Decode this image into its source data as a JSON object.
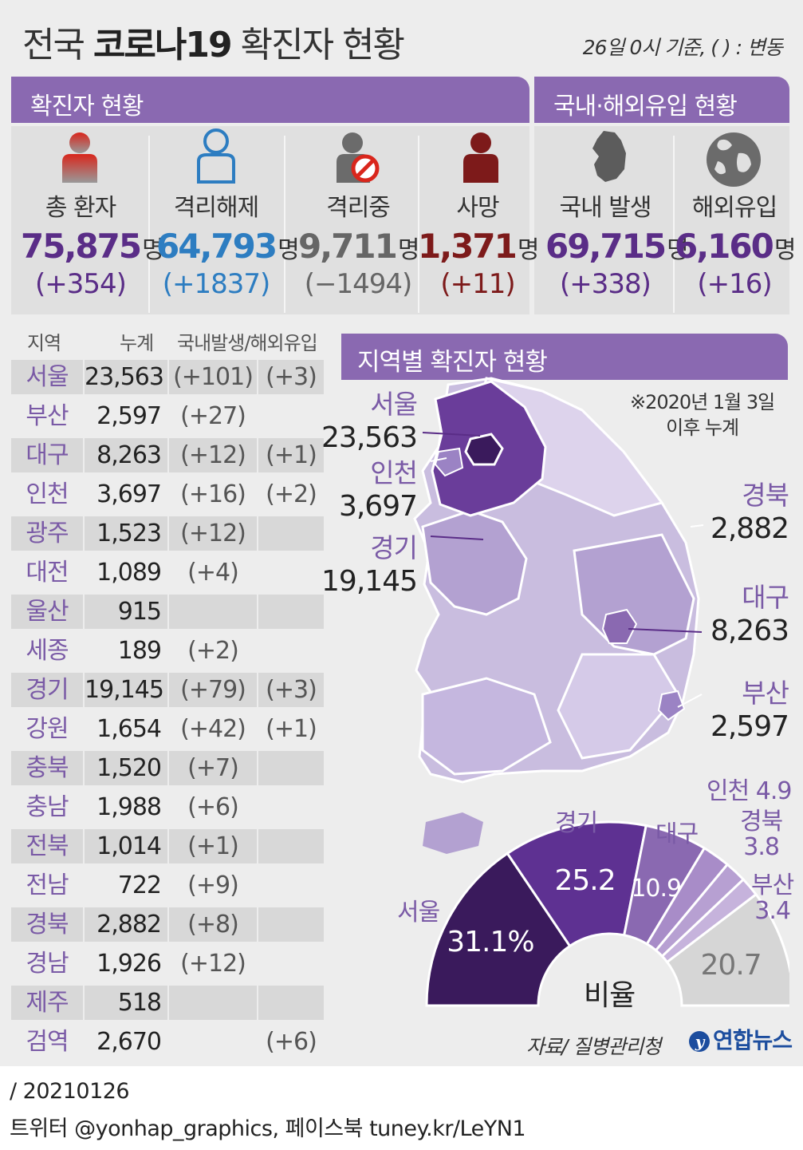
{
  "header": {
    "title_prefix": "전국 ",
    "title_bold": "코로나19",
    "title_suffix": " 확진자 현황",
    "subtitle": "26일 0시 기준, ( ) : 변동"
  },
  "status_section": {
    "title": "확진자 현황",
    "items": [
      {
        "label": "총 환자",
        "value": "75,875",
        "unit": "명",
        "change": "(+354)",
        "icon": "person-red-icon",
        "color": "#5a2d87"
      },
      {
        "label": "격리해제",
        "value": "64,793",
        "unit": "명",
        "change": "(+1837)",
        "icon": "person-outline-icon",
        "color": "#2d7dc1"
      },
      {
        "label": "격리중",
        "value": "9,711",
        "unit": "명",
        "change": "(−1494)",
        "icon": "person-blocked-icon",
        "color": "#666666"
      },
      {
        "label": "사망",
        "value": "1,371",
        "unit": "명",
        "change": "(+11)",
        "icon": "person-darkred-icon",
        "color": "#7d1a1a"
      }
    ]
  },
  "origin_section": {
    "title": "국내·해외유입 현황",
    "items": [
      {
        "label": "국내 발생",
        "value": "69,715",
        "unit": "명",
        "change": "(+338)",
        "icon": "korea-map-icon",
        "color": "#5a2d87"
      },
      {
        "label": "해외유입",
        "value": "6,160",
        "unit": "명",
        "change": "(+16)",
        "icon": "globe-icon",
        "color": "#5a2d87"
      }
    ]
  },
  "table": {
    "headers": [
      "지역",
      "누계",
      "국내발생/해외유입"
    ],
    "rows": [
      {
        "region": "서울",
        "total": "23,563",
        "domestic": "(+101)",
        "imported": "(+3)"
      },
      {
        "region": "부산",
        "total": "2,597",
        "domestic": "(+27)",
        "imported": ""
      },
      {
        "region": "대구",
        "total": "8,263",
        "domestic": "(+12)",
        "imported": "(+1)"
      },
      {
        "region": "인천",
        "total": "3,697",
        "domestic": "(+16)",
        "imported": "(+2)"
      },
      {
        "region": "광주",
        "total": "1,523",
        "domestic": "(+12)",
        "imported": ""
      },
      {
        "region": "대전",
        "total": "1,089",
        "domestic": "(+4)",
        "imported": ""
      },
      {
        "region": "울산",
        "total": "915",
        "domestic": "",
        "imported": ""
      },
      {
        "region": "세종",
        "total": "189",
        "domestic": "(+2)",
        "imported": ""
      },
      {
        "region": "경기",
        "total": "19,145",
        "domestic": "(+79)",
        "imported": "(+3)"
      },
      {
        "region": "강원",
        "total": "1,654",
        "domestic": "(+42)",
        "imported": "(+1)"
      },
      {
        "region": "충북",
        "total": "1,520",
        "domestic": "(+7)",
        "imported": ""
      },
      {
        "region": "충남",
        "total": "1,988",
        "domestic": "(+6)",
        "imported": ""
      },
      {
        "region": "전북",
        "total": "1,014",
        "domestic": "(+1)",
        "imported": ""
      },
      {
        "region": "전남",
        "total": "722",
        "domestic": "(+9)",
        "imported": ""
      },
      {
        "region": "경북",
        "total": "2,882",
        "domestic": "(+8)",
        "imported": ""
      },
      {
        "region": "경남",
        "total": "1,926",
        "domestic": "(+12)",
        "imported": ""
      },
      {
        "region": "제주",
        "total": "518",
        "domestic": "",
        "imported": ""
      },
      {
        "region": "검역",
        "total": "2,670",
        "domestic": "",
        "imported": "(+6)"
      }
    ]
  },
  "map_section": {
    "title": "지역별 확진자 현황",
    "note_line1": "※2020년 1월 3일",
    "note_line2": "이후 누계",
    "labels": [
      {
        "name": "서울",
        "value": "23,563"
      },
      {
        "name": "인천",
        "value": "3,697"
      },
      {
        "name": "경기",
        "value": "19,145"
      },
      {
        "name": "경북",
        "value": "2,882"
      },
      {
        "name": "대구",
        "value": "8,263"
      },
      {
        "name": "부산",
        "value": "2,597"
      }
    ]
  },
  "chart_data": {
    "type": "pie",
    "shape": "half-donut",
    "center_label": "비율",
    "unit": "%",
    "slices": [
      {
        "label": "서울",
        "value": 31.1,
        "display": "31.1",
        "color": "#3a1a5c"
      },
      {
        "label": "경기",
        "value": 25.2,
        "display": "25.2",
        "color": "#5e3192"
      },
      {
        "label": "대구",
        "value": 10.9,
        "display": "10.9",
        "color": "#8a69b1"
      },
      {
        "label": "인천",
        "value": 4.9,
        "display": "4.9",
        "color": "#a88cc8"
      },
      {
        "label": "경북",
        "value": 3.8,
        "display": "3.8",
        "color": "#b7a0d2"
      },
      {
        "label": "부산",
        "value": 3.4,
        "display": "3.4",
        "color": "#c6b3dc"
      },
      {
        "label": "",
        "value": 20.7,
        "display": "20.7",
        "color": "#d6d6d6"
      }
    ]
  },
  "source": "자료/ 질병관리청",
  "logo": "연합뉴스",
  "footer": {
    "date": "/ 20210126",
    "sns": "트위터 @yonhap_graphics, 페이스북 tuney.kr/LeYN1"
  }
}
